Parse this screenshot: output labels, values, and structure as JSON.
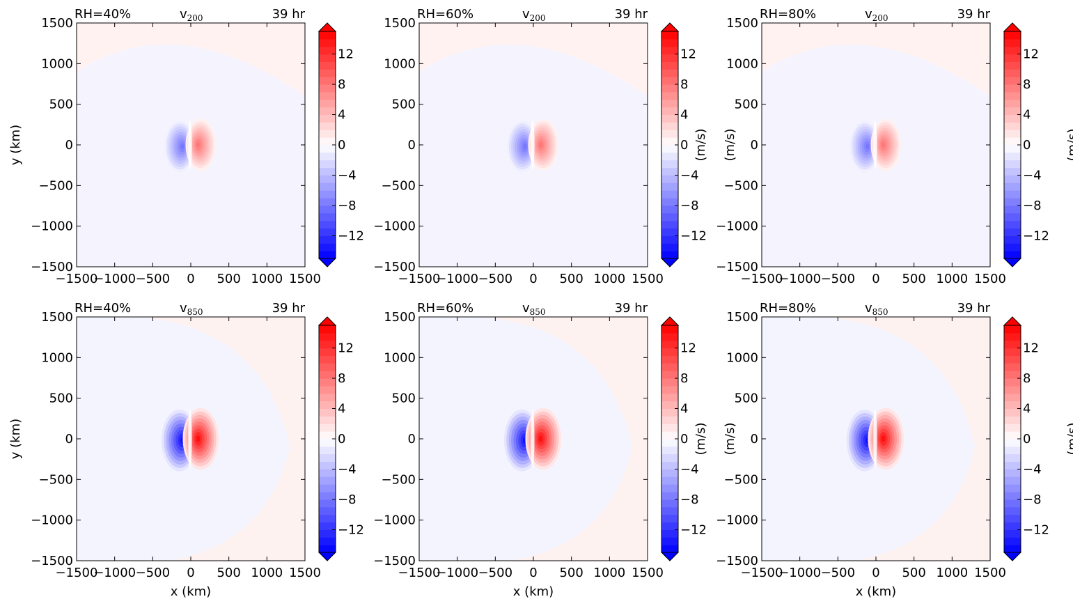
{
  "chart_data": [
    {
      "type": "heatmap",
      "rh_label": "RH=40%",
      "var_label": "v",
      "level": "200",
      "time_label": "39 hr",
      "xlabel": "",
      "ylabel": "y (km)",
      "cbar_label": "",
      "xlim": [
        -1500,
        1500
      ],
      "ylim": [
        -1500,
        1500
      ],
      "xticks": [
        -1500,
        -1000,
        -500,
        0,
        500,
        1000,
        1500
      ],
      "yticks": [
        -1500,
        -1000,
        -500,
        0,
        500,
        1000,
        1500
      ],
      "clim": [
        -15,
        15
      ],
      "cbar_ticks": [
        -12,
        -8,
        -4,
        0,
        4,
        8,
        12
      ],
      "features": {
        "blue_center_x": -150,
        "red_center_x": 130,
        "peak": 8,
        "halo_radius": 320
      }
    },
    {
      "type": "heatmap",
      "rh_label": "RH=60%",
      "var_label": "v",
      "level": "200",
      "time_label": "39 hr",
      "xlabel": "",
      "ylabel": "",
      "cbar_label": "(m/s)",
      "xlim": [
        -1500,
        1500
      ],
      "ylim": [
        -1500,
        1500
      ],
      "xticks": [
        -1500,
        -1000,
        -500,
        0,
        500,
        1000,
        1500
      ],
      "yticks": [
        -1500,
        -1000,
        -500,
        0,
        500,
        1000,
        1500
      ],
      "clim": [
        -15,
        15
      ],
      "cbar_ticks": [
        -12,
        -8,
        -4,
        0,
        4,
        8,
        12
      ],
      "features": {
        "blue_center_x": -150,
        "red_center_x": 130,
        "peak": 8,
        "halo_radius": 320
      }
    },
    {
      "type": "heatmap",
      "rh_label": "RH=80%",
      "var_label": "v",
      "level": "200",
      "time_label": "39 hr",
      "xlabel": "",
      "ylabel": "(m/s)",
      "cbar_label": "(m/s)",
      "xlim": [
        -1500,
        1500
      ],
      "ylim": [
        -1500,
        1500
      ],
      "xticks": [
        -1500,
        -1000,
        -500,
        0,
        500,
        1000,
        1500
      ],
      "yticks": [
        -1500,
        -1000,
        -500,
        0,
        500,
        1000,
        1500
      ],
      "clim": [
        -15,
        15
      ],
      "cbar_ticks": [
        -12,
        -8,
        -4,
        0,
        4,
        8,
        12
      ],
      "features": {
        "blue_center_x": -150,
        "red_center_x": 130,
        "peak": 8,
        "halo_radius": 320
      }
    },
    {
      "type": "heatmap",
      "rh_label": "RH=40%",
      "var_label": "v",
      "level": "850",
      "time_label": "39 hr",
      "xlabel": "x (km)",
      "ylabel": "y (km)",
      "cbar_label": "",
      "xlim": [
        -1500,
        1500
      ],
      "ylim": [
        -1500,
        1500
      ],
      "xticks": [
        -1500,
        -1000,
        -500,
        0,
        500,
        1000,
        1500
      ],
      "yticks": [
        -1500,
        -1000,
        -500,
        0,
        500,
        1000,
        1500
      ],
      "clim": [
        -15,
        15
      ],
      "cbar_ticks": [
        -12,
        -8,
        -4,
        0,
        4,
        8,
        12
      ],
      "features": {
        "blue_center_x": -150,
        "red_center_x": 130,
        "peak": 14,
        "halo_radius": 380
      }
    },
    {
      "type": "heatmap",
      "rh_label": "RH=60%",
      "var_label": "v",
      "level": "850",
      "time_label": "39 hr",
      "xlabel": "x (km)",
      "ylabel": "",
      "cbar_label": "(m/s)",
      "xlim": [
        -1500,
        1500
      ],
      "ylim": [
        -1500,
        1500
      ],
      "xticks": [
        -1500,
        -1000,
        -500,
        0,
        500,
        1000,
        1500
      ],
      "yticks": [
        -1500,
        -1000,
        -500,
        0,
        500,
        1000,
        1500
      ],
      "clim": [
        -15,
        15
      ],
      "cbar_ticks": [
        -12,
        -8,
        -4,
        0,
        4,
        8,
        12
      ],
      "features": {
        "blue_center_x": -150,
        "red_center_x": 130,
        "peak": 14,
        "halo_radius": 380
      }
    },
    {
      "type": "heatmap",
      "rh_label": "RH=80%",
      "var_label": "v",
      "level": "850",
      "time_label": "39 hr",
      "xlabel": "x (km)",
      "ylabel": "(m/s)",
      "cbar_label": "(m/s)",
      "xlim": [
        -1500,
        1500
      ],
      "ylim": [
        -1500,
        1500
      ],
      "xticks": [
        -1500,
        -1000,
        -500,
        0,
        500,
        1000,
        1500
      ],
      "yticks": [
        -1500,
        -1000,
        -500,
        0,
        500,
        1000,
        1500
      ],
      "clim": [
        -15,
        15
      ],
      "cbar_ticks": [
        -12,
        -8,
        -4,
        0,
        4,
        8,
        12
      ],
      "features": {
        "blue_center_x": -150,
        "red_center_x": 130,
        "peak": 14,
        "halo_radius": 380
      }
    }
  ],
  "colors": {
    "negative": "#0000ff",
    "zero": "#ffffff",
    "positive": "#ff0000",
    "background_positive": "#fff2f0",
    "background_negative": "#f4f4ff"
  }
}
